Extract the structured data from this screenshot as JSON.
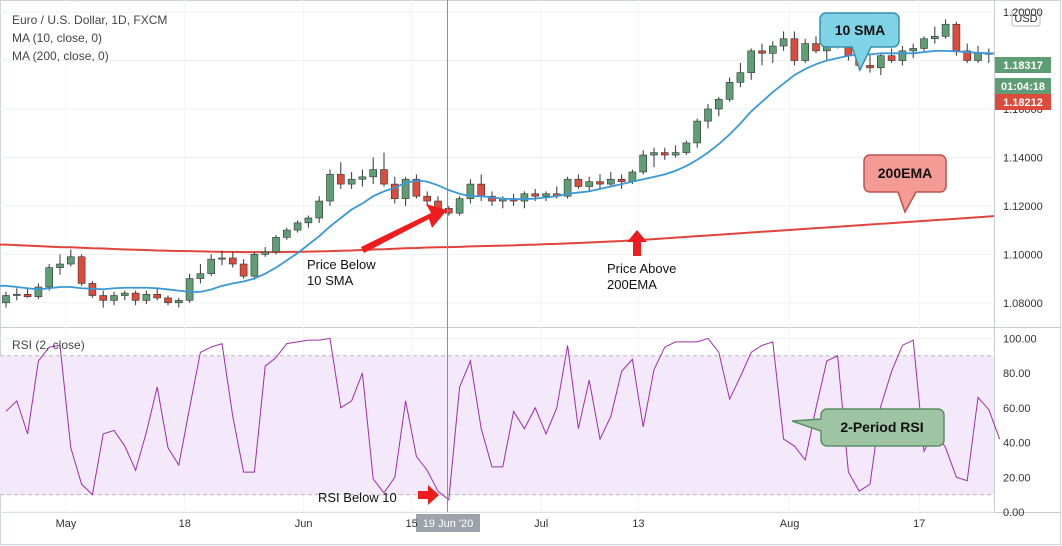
{
  "legend": {
    "symbol": "Euro / U.S. Dollar, 1D, FXCM",
    "ma10": "MA (10, close, 0)",
    "ma200": "MA (200, close, 0)",
    "rsi": "RSI (2, close)"
  },
  "currency_badge": "USD",
  "price_tags": [
    {
      "label": "1.18317",
      "color": "#5f9e74"
    },
    {
      "label": "01:04:18",
      "color": "#5f9e74"
    },
    {
      "label": "1.18212",
      "color": "#dd4b3c"
    }
  ],
  "callouts": {
    "sma": {
      "text": "10 SMA",
      "fill": "#7fd3e6",
      "stroke": "#3a8fb0"
    },
    "ema": {
      "text": "200EMA",
      "fill": "#f49b95",
      "stroke": "#c0504d"
    },
    "rsi": {
      "text": "2-Period RSI",
      "fill": "#9fc4a4",
      "stroke": "#5a8f66"
    }
  },
  "annotations": {
    "price_below": [
      "Price Below",
      "10 SMA"
    ],
    "price_above": [
      "Price Above",
      "200EMA"
    ],
    "rsi_below": "RSI Below 10"
  },
  "crosshair_label": "19 Jun '20",
  "x_labels": [
    "May",
    "18",
    "Jun",
    "15",
    "Jul",
    "13",
    "Aug",
    "17"
  ],
  "colors": {
    "up": "#5f9e74",
    "down": "#dd4b3c",
    "sma": "#3a98d8",
    "ema": "#e0443a",
    "rsi": "#9b30a8",
    "rsi_band": "#f4e8fb",
    "arrow": "#ee1c1c"
  },
  "chart_data": [
    {
      "type": "candlestick",
      "title": "Euro / U.S. Dollar, 1D, FXCM",
      "ylim": [
        1.07,
        1.205
      ],
      "y_ticks": [
        "1.08000",
        "1.10000",
        "1.12000",
        "1.14000",
        "1.16000",
        "1.18000",
        "1.20000"
      ],
      "candles": [
        [
          1.08,
          1.0845,
          1.078,
          1.083
        ],
        [
          1.083,
          1.086,
          1.081,
          1.0835
        ],
        [
          1.0835,
          1.086,
          1.082,
          1.0825
        ],
        [
          1.0825,
          1.088,
          1.0815,
          1.0865
        ],
        [
          1.0865,
          1.096,
          1.085,
          1.0945
        ],
        [
          1.0945,
          1.1,
          1.0915,
          1.096
        ],
        [
          1.096,
          1.102,
          1.095,
          1.099
        ],
        [
          1.099,
          1.1,
          1.087,
          1.088
        ],
        [
          1.088,
          1.089,
          1.082,
          1.083
        ],
        [
          1.083,
          1.085,
          1.078,
          1.081
        ],
        [
          1.081,
          1.0845,
          1.079,
          1.083
        ],
        [
          1.083,
          1.085,
          1.081,
          1.084
        ],
        [
          1.084,
          1.085,
          1.079,
          1.081
        ],
        [
          1.081,
          1.085,
          1.0795,
          1.0835
        ],
        [
          1.0835,
          1.086,
          1.081,
          1.082
        ],
        [
          1.082,
          1.083,
          1.079,
          1.08
        ],
        [
          1.08,
          1.082,
          1.078,
          1.081
        ],
        [
          1.081,
          1.092,
          1.08,
          1.09
        ],
        [
          1.09,
          1.096,
          1.088,
          1.092
        ],
        [
          1.092,
          1.1,
          1.091,
          1.098
        ],
        [
          1.098,
          1.1015,
          1.0955,
          1.0985
        ],
        [
          1.0985,
          1.101,
          1.0945,
          1.096
        ],
        [
          1.096,
          1.098,
          1.09,
          1.091
        ],
        [
          1.091,
          1.101,
          1.0895,
          1.1
        ],
        [
          1.1,
          1.103,
          1.099,
          1.101
        ],
        [
          1.101,
          1.108,
          1.1,
          1.107
        ],
        [
          1.107,
          1.111,
          1.106,
          1.11
        ],
        [
          1.11,
          1.114,
          1.109,
          1.113
        ],
        [
          1.113,
          1.116,
          1.111,
          1.115
        ],
        [
          1.115,
          1.124,
          1.113,
          1.122
        ],
        [
          1.122,
          1.135,
          1.12,
          1.133
        ],
        [
          1.133,
          1.138,
          1.127,
          1.129
        ],
        [
          1.129,
          1.134,
          1.127,
          1.131
        ],
        [
          1.131,
          1.135,
          1.128,
          1.132
        ],
        [
          1.132,
          1.14,
          1.129,
          1.135
        ],
        [
          1.135,
          1.142,
          1.128,
          1.129
        ],
        [
          1.129,
          1.132,
          1.121,
          1.123
        ],
        [
          1.123,
          1.132,
          1.12,
          1.131
        ],
        [
          1.131,
          1.133,
          1.123,
          1.124
        ],
        [
          1.124,
          1.126,
          1.12,
          1.122
        ],
        [
          1.122,
          1.124,
          1.117,
          1.119
        ],
        [
          1.119,
          1.12,
          1.116,
          1.117
        ],
        [
          1.117,
          1.124,
          1.116,
          1.123
        ],
        [
          1.123,
          1.131,
          1.121,
          1.129
        ],
        [
          1.129,
          1.133,
          1.122,
          1.124
        ],
        [
          1.124,
          1.126,
          1.12,
          1.122
        ],
        [
          1.122,
          1.124,
          1.119,
          1.123
        ],
        [
          1.123,
          1.125,
          1.12,
          1.122
        ],
        [
          1.122,
          1.126,
          1.119,
          1.125
        ],
        [
          1.125,
          1.127,
          1.122,
          1.124
        ],
        [
          1.124,
          1.126,
          1.122,
          1.125
        ],
        [
          1.125,
          1.128,
          1.123,
          1.124
        ],
        [
          1.124,
          1.132,
          1.123,
          1.131
        ],
        [
          1.131,
          1.133,
          1.127,
          1.128
        ],
        [
          1.128,
          1.132,
          1.126,
          1.13
        ],
        [
          1.13,
          1.133,
          1.127,
          1.129
        ],
        [
          1.129,
          1.134,
          1.128,
          1.131
        ],
        [
          1.131,
          1.133,
          1.127,
          1.13
        ],
        [
          1.13,
          1.135,
          1.129,
          1.134
        ],
        [
          1.134,
          1.143,
          1.133,
          1.141
        ],
        [
          1.141,
          1.144,
          1.136,
          1.142
        ],
        [
          1.142,
          1.144,
          1.139,
          1.141
        ],
        [
          1.141,
          1.145,
          1.14,
          1.142
        ],
        [
          1.142,
          1.147,
          1.141,
          1.146
        ],
        [
          1.146,
          1.156,
          1.144,
          1.155
        ],
        [
          1.155,
          1.162,
          1.152,
          1.16
        ],
        [
          1.16,
          1.165,
          1.157,
          1.164
        ],
        [
          1.164,
          1.173,
          1.163,
          1.171
        ],
        [
          1.171,
          1.179,
          1.169,
          1.175
        ],
        [
          1.175,
          1.185,
          1.172,
          1.184
        ],
        [
          1.184,
          1.187,
          1.178,
          1.183
        ],
        [
          1.183,
          1.188,
          1.179,
          1.186
        ],
        [
          1.186,
          1.192,
          1.184,
          1.189
        ],
        [
          1.189,
          1.192,
          1.178,
          1.18
        ],
        [
          1.18,
          1.189,
          1.179,
          1.187
        ],
        [
          1.187,
          1.19,
          1.183,
          1.184
        ],
        [
          1.184,
          1.19,
          1.18,
          1.189
        ],
        [
          1.189,
          1.194,
          1.185,
          1.191
        ],
        [
          1.191,
          1.193,
          1.18,
          1.182
        ],
        [
          1.182,
          1.186,
          1.176,
          1.178
        ],
        [
          1.178,
          1.183,
          1.175,
          1.177
        ],
        [
          1.177,
          1.183,
          1.174,
          1.182
        ],
        [
          1.182,
          1.185,
          1.179,
          1.18
        ],
        [
          1.18,
          1.186,
          1.178,
          1.184
        ],
        [
          1.184,
          1.187,
          1.181,
          1.185
        ],
        [
          1.185,
          1.19,
          1.184,
          1.189
        ],
        [
          1.189,
          1.194,
          1.187,
          1.19
        ],
        [
          1.19,
          1.197,
          1.189,
          1.195
        ],
        [
          1.195,
          1.196,
          1.182,
          1.184
        ],
        [
          1.184,
          1.187,
          1.179,
          1.18
        ],
        [
          1.18,
          1.186,
          1.179,
          1.183
        ],
        [
          1.183,
          1.185,
          1.179,
          1.183
        ]
      ],
      "sma10": [
        1.087,
        1.0865,
        1.086,
        1.0855,
        1.086,
        1.0865,
        1.0865,
        1.086,
        1.0858,
        1.0856,
        1.086,
        1.0862,
        1.0862,
        1.0862,
        1.086,
        1.0855,
        1.085,
        1.0845,
        1.0845,
        1.0855,
        1.087,
        1.088,
        1.0888,
        1.09,
        1.092,
        1.0945,
        1.0975,
        1.1005,
        1.104,
        1.1075,
        1.1115,
        1.115,
        1.1185,
        1.121,
        1.124,
        1.126,
        1.1275,
        1.1295,
        1.1305,
        1.13,
        1.1285,
        1.1265,
        1.125,
        1.124,
        1.124,
        1.1235,
        1.123,
        1.1228,
        1.1228,
        1.123,
        1.1235,
        1.124,
        1.125,
        1.1255,
        1.126,
        1.127,
        1.128,
        1.129,
        1.13,
        1.131,
        1.132,
        1.133,
        1.1345,
        1.1365,
        1.139,
        1.142,
        1.1455,
        1.1495,
        1.154,
        1.159,
        1.163,
        1.167,
        1.1705,
        1.174,
        1.1765,
        1.1785,
        1.18,
        1.181,
        1.182,
        1.1825,
        1.1825,
        1.183,
        1.183,
        1.183,
        1.183,
        1.1835,
        1.184,
        1.184,
        1.1838,
        1.1835,
        1.1832,
        1.183
      ],
      "ema200": [
        1.104,
        1.1038,
        1.1036,
        1.1034,
        1.1032,
        1.103,
        1.1029,
        1.1027,
        1.1025,
        1.1024,
        1.1022,
        1.102,
        1.1019,
        1.1018,
        1.1016,
        1.1015,
        1.1014,
        1.1013,
        1.1012,
        1.1011,
        1.101,
        1.101,
        1.1009,
        1.1009,
        1.1009,
        1.1009,
        1.101,
        1.101,
        1.1011,
        1.1012,
        1.1013,
        1.1015,
        1.1016,
        1.1018,
        1.102,
        1.1021,
        1.1023,
        1.1025,
        1.1026,
        1.1028,
        1.1029,
        1.103,
        1.1031,
        1.1033,
        1.1034,
        1.1035,
        1.1036,
        1.1037,
        1.1039,
        1.104,
        1.1042,
        1.1043,
        1.1045,
        1.1047,
        1.1049,
        1.1051,
        1.1053,
        1.1055,
        1.1058,
        1.106,
        1.1063,
        1.1066,
        1.1069,
        1.1072,
        1.1075,
        1.1078,
        1.1081,
        1.1084,
        1.1087,
        1.109,
        1.1093,
        1.1096,
        1.1099,
        1.1102,
        1.1105,
        1.1108,
        1.1111,
        1.1114,
        1.1117,
        1.112,
        1.1123,
        1.1126,
        1.1129,
        1.1132,
        1.1135,
        1.1138,
        1.1141,
        1.1144,
        1.1147,
        1.115,
        1.1153,
        1.1156
      ]
    },
    {
      "type": "line",
      "title": "RSI (2, close)",
      "ylim": [
        0,
        106
      ],
      "y_ticks": [
        "0.00",
        "20.00",
        "40.00",
        "60.00",
        "80.00",
        "100.00"
      ],
      "band": [
        10,
        90
      ],
      "values": [
        58,
        64,
        45,
        87,
        95,
        96,
        37,
        16,
        10,
        45,
        47,
        38,
        24,
        46,
        72,
        37,
        27,
        60,
        92,
        95,
        97,
        55,
        23,
        23,
        84,
        89,
        97,
        98,
        99,
        99,
        100,
        60,
        64,
        80,
        19,
        11,
        20,
        64,
        32,
        24,
        12,
        7,
        72,
        87,
        48,
        26,
        26,
        58,
        48,
        60,
        45,
        60,
        96,
        48,
        76,
        42,
        55,
        81,
        88,
        49,
        82,
        95,
        98,
        98,
        98,
        100,
        92,
        65,
        78,
        92,
        96,
        98,
        42,
        38,
        30,
        60,
        87,
        90,
        23,
        12,
        16,
        61,
        81,
        96,
        99,
        35,
        47,
        37,
        20,
        18,
        66,
        59,
        42
      ]
    }
  ]
}
